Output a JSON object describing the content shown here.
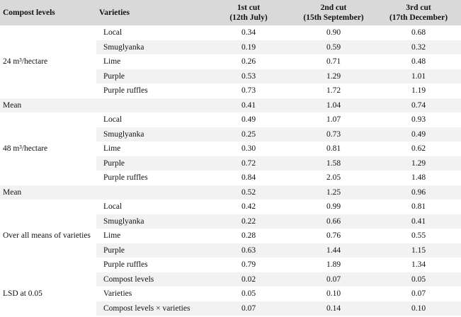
{
  "headers": {
    "compost_levels": "Compost levels",
    "varieties": "Varieties",
    "cut1_line1": "1st cut",
    "cut1_line2": "(12th July)",
    "cut2_line1": "2nd cut",
    "cut2_line2": "(15th September)",
    "cut3_line1": "3rd cut",
    "cut3_line2": "(17th December)"
  },
  "groups": {
    "g24": "24 m³/hectare",
    "mean1": "Mean",
    "g48": "48 m³/hectare",
    "mean2": "Mean",
    "overall": "Over all means of varieties",
    "lsd": "LSD at 0.05"
  },
  "rows": [
    {
      "variety": "Local",
      "c1": "0.34",
      "c2": "0.90",
      "c3": "0.68"
    },
    {
      "variety": "Smuglyanka",
      "c1": "0.19",
      "c2": "0.59",
      "c3": "0.32"
    },
    {
      "variety": "Lime",
      "c1": "0.26",
      "c2": "0.71",
      "c3": "0.48"
    },
    {
      "variety": "Purple",
      "c1": "0.53",
      "c2": "1.29",
      "c3": "1.01"
    },
    {
      "variety": "Purple ruffles",
      "c1": "0.73",
      "c2": "1.72",
      "c3": "1.19"
    },
    {
      "variety": "",
      "c1": "0.41",
      "c2": "1.04",
      "c3": "0.74"
    },
    {
      "variety": "Local",
      "c1": "0.49",
      "c2": "1.07",
      "c3": "0.93"
    },
    {
      "variety": "Smuglyanka",
      "c1": "0.25",
      "c2": "0.73",
      "c3": "0.49"
    },
    {
      "variety": "Lime",
      "c1": "0.30",
      "c2": "0.81",
      "c3": "0.62"
    },
    {
      "variety": "Purple",
      "c1": "0.72",
      "c2": "1.58",
      "c3": "1.29"
    },
    {
      "variety": "Purple ruffles",
      "c1": "0.84",
      "c2": "2.05",
      "c3": "1.48"
    },
    {
      "variety": "",
      "c1": "0.52",
      "c2": "1.25",
      "c3": "0.96"
    },
    {
      "variety": "Local",
      "c1": "0.42",
      "c2": "0.99",
      "c3": "0.81"
    },
    {
      "variety": "Smuglyanka",
      "c1": "0.22",
      "c2": "0.66",
      "c3": "0.41"
    },
    {
      "variety": "Lime",
      "c1": "0.28",
      "c2": "0.76",
      "c3": "0.55"
    },
    {
      "variety": "Purple",
      "c1": "0.63",
      "c2": "1.44",
      "c3": "1.15"
    },
    {
      "variety": "Purple ruffles",
      "c1": "0.79",
      "c2": "1.89",
      "c3": "1.34"
    },
    {
      "variety": "Compost levels",
      "c1": "0.02",
      "c2": "0.07",
      "c3": "0.05"
    },
    {
      "variety": "Varieties",
      "c1": "0.05",
      "c2": "0.10",
      "c3": "0.07"
    },
    {
      "variety": "Compost levels × varieties",
      "c1": "0.07",
      "c2": "0.14",
      "c3": "0.10"
    }
  ]
}
